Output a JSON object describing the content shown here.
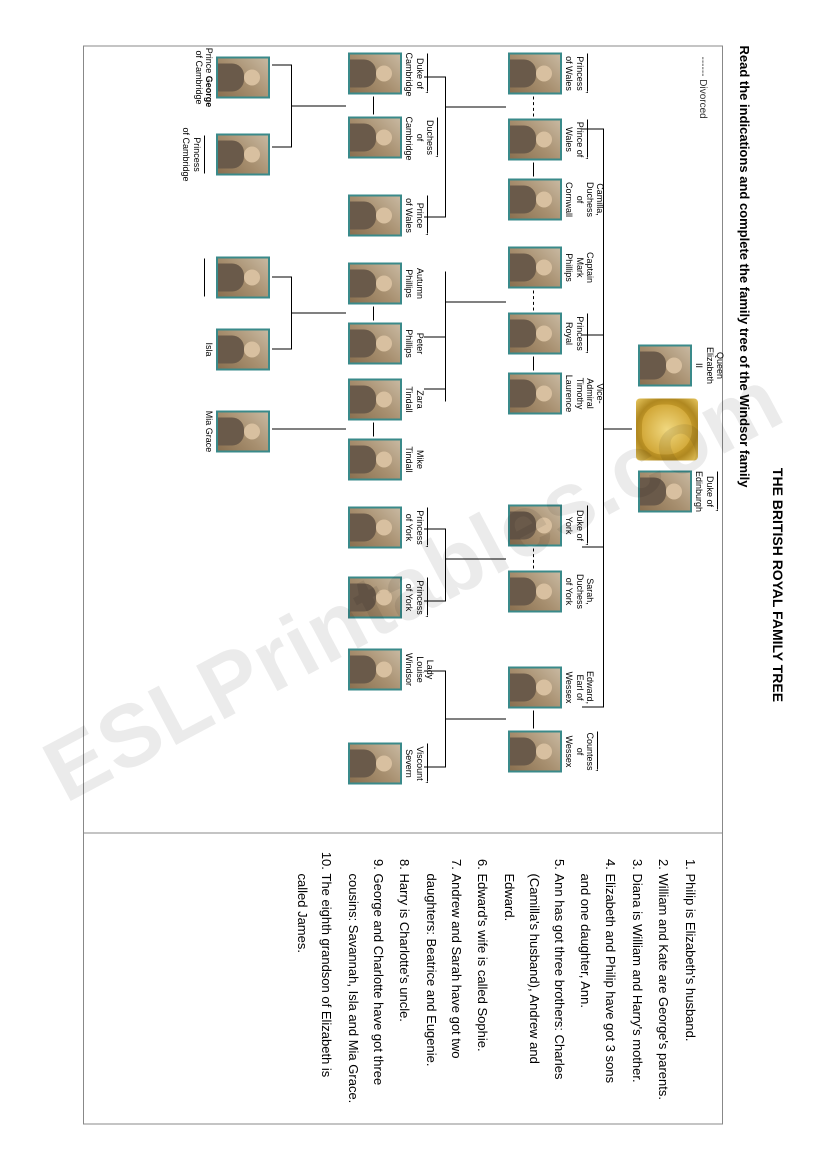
{
  "title": "THE BRITISH ROYAL FAMILY TREE",
  "instruction": "Read the indications and complete the family tree of the Windsor family",
  "legend": "------ Divorced",
  "watermark": "ESLPrintables.com",
  "clues": [
    "Philip is Elizabeth's husband.",
    "William and Kate are George's parents.",
    "Diana is William and Harry's mother.",
    "Elizabeth and Philip have got 3 sons and one daughter, Ann.",
    "Ann has got three brothers: Charles (Camilla's husband), Andrew and Edward.",
    "Edward's wife is called Sophie.",
    "Andrew and Sarah have got two daughters: Beatrice and Eugenie.",
    "Harry is Charlotte's uncle.",
    "George and Charlotte have got three cousins: Savannah, Isla and Mia Grace.",
    "The eighth grandson of Elizabeth is called James."
  ],
  "people": {
    "elizabeth": "Queen Elizabeth II",
    "philip": "Duke of Edinburgh",
    "diana": "Princess of Wales",
    "charles": "Prince of Wales",
    "camilla": "Camilla,",
    "camilla2": "Duchess of Cornwall",
    "mark": "Captain Mark",
    "mark2": "Phillips",
    "anne": "Princess Royal",
    "timothy": "Vice-Admiral",
    "timothy2": "Timothy Laurence",
    "andrew": "Duke of York",
    "sarah": "Sarah,",
    "sarah2": "Duchess of York",
    "edward": "Edward,",
    "edward2": "Earl of Wessex",
    "sophie": "Countess of",
    "sophie2": "Wessex",
    "william": "Duke of",
    "william2": "Cambridge",
    "kate": "Duchess of",
    "kate2": "Cambridge",
    "harry": "Prince",
    "harry2": "of Wales",
    "autumn": "Autumn",
    "autumn2": "Phillips",
    "peter": "Peter",
    "peter2": "Phillips",
    "zara": "Zara",
    "zara2": "Tindall",
    "mike": "Mike",
    "mike2": "Tindall",
    "beatrice": "Princess",
    "beatrice2": "of York",
    "eugenie": "Princess",
    "eugenie2": "of York",
    "louise": "Lady Louise",
    "louise2": "Windsor",
    "james": "Viscount",
    "james2": "Severn",
    "george_pre": "Prince",
    "george_bold": "George",
    "george_suf": "of Cambridge",
    "charlotte": "Princess",
    "charlotte2": "of Cambridge",
    "isla": "Isla",
    "mia": "Mia Grace"
  }
}
